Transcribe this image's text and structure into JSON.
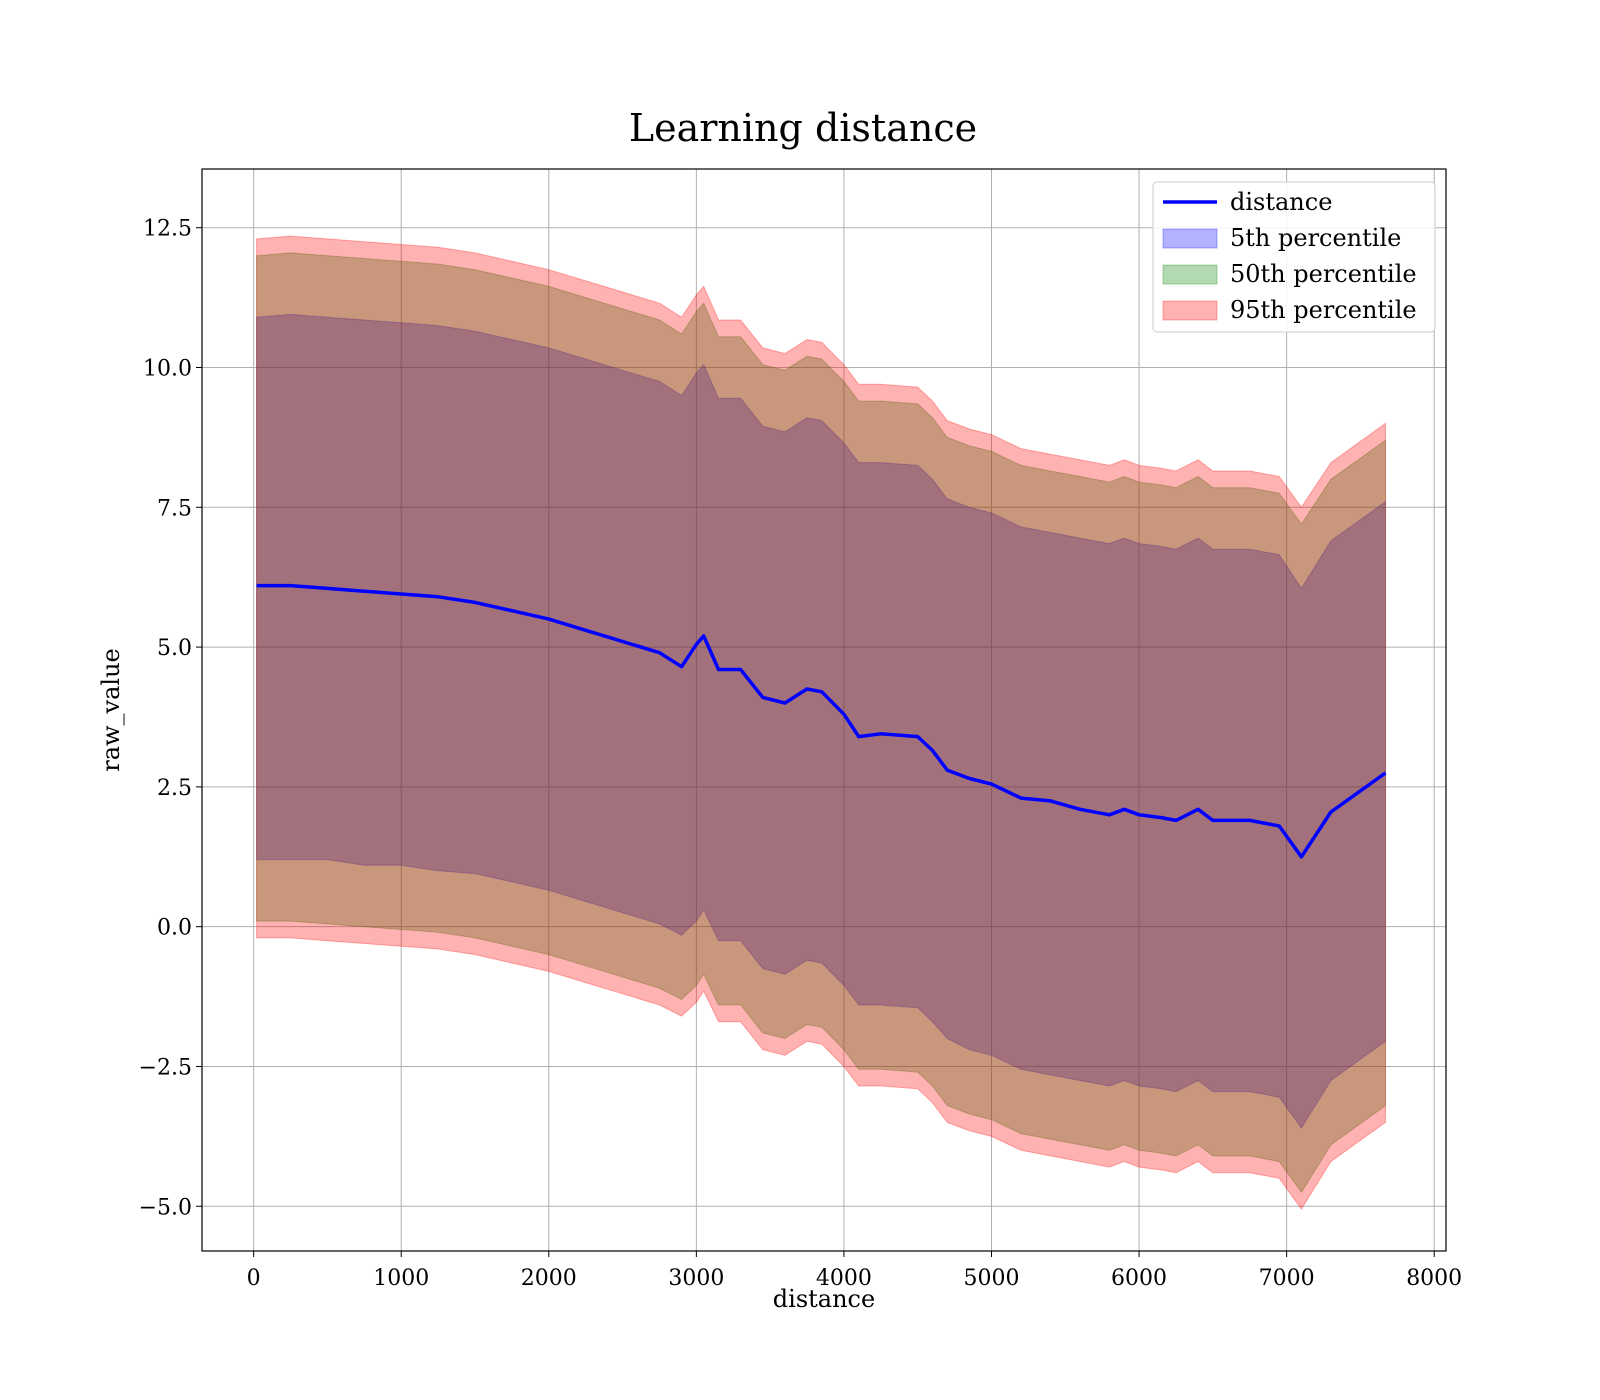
{
  "chart_data": {
    "type": "area",
    "title": "Learning distance",
    "xlabel": "distance",
    "ylabel": "raw_value",
    "xlim": [
      -350,
      8080
    ],
    "ylim": [
      -5.8,
      13.55
    ],
    "xticks": [
      0,
      1000,
      2000,
      3000,
      4000,
      5000,
      6000,
      7000,
      8000
    ],
    "xtick_labels": [
      "0",
      "1000",
      "2000",
      "3000",
      "4000",
      "5000",
      "6000",
      "7000",
      "8000"
    ],
    "yticks": [
      -5.0,
      -2.5,
      0.0,
      2.5,
      5.0,
      7.5,
      10.0,
      12.5
    ],
    "ytick_labels": [
      "−5.0",
      "−2.5",
      "0.0",
      "2.5",
      "5.0",
      "7.5",
      "10.0",
      "12.5"
    ],
    "grid": true,
    "legend_position": "top-right",
    "legend": [
      {
        "label": "distance",
        "kind": "line",
        "color": "#0000ff"
      },
      {
        "label": "5th percentile",
        "kind": "band",
        "color": "#0000ff"
      },
      {
        "label": "50th percentile",
        "kind": "band",
        "color": "#008000"
      },
      {
        "label": "95th percentile",
        "kind": "band",
        "color": "#ff0000"
      }
    ],
    "x": [
      20,
      250,
      500,
      750,
      1000,
      1250,
      1500,
      1750,
      2000,
      2250,
      2500,
      2750,
      2900,
      3000,
      3050,
      3150,
      3300,
      3450,
      3600,
      3750,
      3850,
      4000,
      4100,
      4250,
      4500,
      4600,
      4700,
      4850,
      5000,
      5200,
      5400,
      5600,
      5800,
      5900,
      6000,
      6150,
      6250,
      6400,
      6500,
      6750,
      6950,
      7100,
      7300,
      7670
    ],
    "series": [
      {
        "name": "distance",
        "kind": "line",
        "color": "#0000ff",
        "values": [
          6.1,
          6.1,
          6.05,
          6.0,
          5.95,
          5.9,
          5.8,
          5.65,
          5.5,
          5.3,
          5.1,
          4.9,
          4.65,
          5.05,
          5.2,
          4.6,
          4.6,
          4.1,
          4.0,
          4.25,
          4.2,
          3.8,
          3.4,
          3.45,
          3.4,
          3.15,
          2.8,
          2.65,
          2.55,
          2.3,
          2.25,
          2.1,
          2.0,
          2.1,
          2.0,
          1.95,
          1.9,
          2.1,
          1.9,
          1.9,
          1.8,
          1.25,
          2.05,
          2.75
        ]
      },
      {
        "name": "5th percentile",
        "kind": "band",
        "color": "#0000ff",
        "lower": [
          1.2,
          1.2,
          1.2,
          1.1,
          1.1,
          1.0,
          0.95,
          0.8,
          0.65,
          0.45,
          0.25,
          0.05,
          -0.15,
          0.1,
          0.3,
          -0.25,
          -0.25,
          -0.75,
          -0.85,
          -0.6,
          -0.65,
          -1.05,
          -1.4,
          -1.4,
          -1.45,
          -1.7,
          -2.0,
          -2.2,
          -2.3,
          -2.55,
          -2.65,
          -2.75,
          -2.85,
          -2.75,
          -2.85,
          -2.9,
          -2.95,
          -2.75,
          -2.95,
          -2.95,
          -3.05,
          -3.6,
          -2.75,
          -2.05
        ],
        "upper": [
          10.9,
          10.95,
          10.9,
          10.85,
          10.8,
          10.75,
          10.65,
          10.5,
          10.35,
          10.15,
          9.95,
          9.75,
          9.5,
          9.9,
          10.05,
          9.45,
          9.45,
          8.95,
          8.85,
          9.1,
          9.05,
          8.65,
          8.3,
          8.3,
          8.25,
          8.0,
          7.65,
          7.5,
          7.4,
          7.15,
          7.05,
          6.95,
          6.85,
          6.95,
          6.85,
          6.8,
          6.75,
          6.95,
          6.75,
          6.75,
          6.65,
          6.05,
          6.9,
          7.6
        ]
      },
      {
        "name": "50th percentile",
        "kind": "band",
        "color": "#008000",
        "lower": [
          0.1,
          0.1,
          0.05,
          0.0,
          -0.05,
          -0.1,
          -0.2,
          -0.35,
          -0.5,
          -0.7,
          -0.9,
          -1.1,
          -1.3,
          -1.05,
          -0.85,
          -1.4,
          -1.4,
          -1.9,
          -2.0,
          -1.75,
          -1.8,
          -2.2,
          -2.55,
          -2.55,
          -2.6,
          -2.85,
          -3.2,
          -3.35,
          -3.45,
          -3.7,
          -3.8,
          -3.9,
          -4.0,
          -3.9,
          -4.0,
          -4.05,
          -4.1,
          -3.9,
          -4.1,
          -4.1,
          -4.2,
          -4.75,
          -3.9,
          -3.2
        ],
        "upper": [
          12.0,
          12.05,
          12.0,
          11.95,
          11.9,
          11.85,
          11.75,
          11.6,
          11.45,
          11.25,
          11.05,
          10.85,
          10.6,
          11.0,
          11.15,
          10.55,
          10.55,
          10.05,
          9.95,
          10.2,
          10.15,
          9.75,
          9.4,
          9.4,
          9.35,
          9.1,
          8.75,
          8.6,
          8.5,
          8.25,
          8.15,
          8.05,
          7.95,
          8.05,
          7.95,
          7.9,
          7.85,
          8.05,
          7.85,
          7.85,
          7.75,
          7.2,
          8.0,
          8.7
        ]
      },
      {
        "name": "95th percentile",
        "kind": "band",
        "color": "#ff0000",
        "lower": [
          -0.2,
          -0.2,
          -0.25,
          -0.3,
          -0.35,
          -0.4,
          -0.5,
          -0.65,
          -0.8,
          -1.0,
          -1.2,
          -1.4,
          -1.6,
          -1.35,
          -1.15,
          -1.7,
          -1.7,
          -2.2,
          -2.3,
          -2.05,
          -2.1,
          -2.5,
          -2.85,
          -2.85,
          -2.9,
          -3.15,
          -3.5,
          -3.65,
          -3.75,
          -4.0,
          -4.1,
          -4.2,
          -4.3,
          -4.2,
          -4.3,
          -4.35,
          -4.4,
          -4.2,
          -4.4,
          -4.4,
          -4.5,
          -5.05,
          -4.2,
          -3.5
        ],
        "upper": [
          12.3,
          12.35,
          12.3,
          12.25,
          12.2,
          12.15,
          12.05,
          11.9,
          11.75,
          11.55,
          11.35,
          11.15,
          10.9,
          11.3,
          11.45,
          10.85,
          10.85,
          10.35,
          10.25,
          10.5,
          10.45,
          10.05,
          9.7,
          9.7,
          9.65,
          9.4,
          9.05,
          8.9,
          8.8,
          8.55,
          8.45,
          8.35,
          8.25,
          8.35,
          8.25,
          8.2,
          8.15,
          8.35,
          8.15,
          8.15,
          8.05,
          7.5,
          8.3,
          9.0
        ]
      }
    ]
  }
}
